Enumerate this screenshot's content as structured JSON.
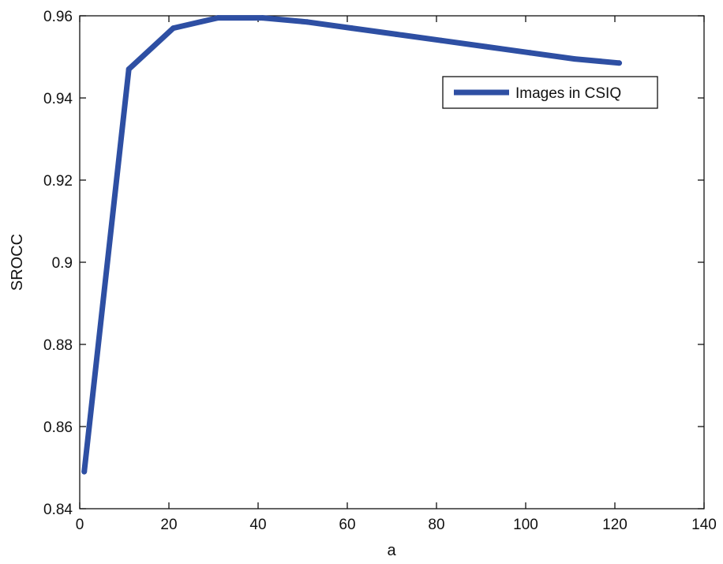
{
  "chart_data": {
    "type": "line",
    "title": "",
    "xlabel": "a",
    "ylabel": "SROCC",
    "xlim": [
      0,
      140
    ],
    "ylim": [
      0.84,
      0.96
    ],
    "xticks": [
      0,
      20,
      40,
      60,
      80,
      100,
      120,
      140
    ],
    "xtick_labels": [
      "0",
      "20",
      "40",
      "60",
      "80",
      "100",
      "120",
      "140"
    ],
    "yticks": [
      0.84,
      0.86,
      0.88,
      0.9,
      0.92,
      0.94,
      0.96
    ],
    "ytick_labels": [
      "0.84",
      "0.86",
      "0.88",
      "0.9",
      "0.92",
      "0.94",
      "0.96"
    ],
    "grid": false,
    "legend_position": "top-right",
    "series": [
      {
        "name": "Images in CSIQ",
        "color": "#2e4fa3",
        "x": [
          1,
          11,
          21,
          31,
          41,
          51,
          61,
          71,
          81,
          91,
          101,
          111,
          121
        ],
        "y": [
          0.849,
          0.947,
          0.957,
          0.9595,
          0.9595,
          0.9585,
          0.957,
          0.9555,
          0.954,
          0.9525,
          0.951,
          0.9495,
          0.9485
        ]
      }
    ]
  }
}
